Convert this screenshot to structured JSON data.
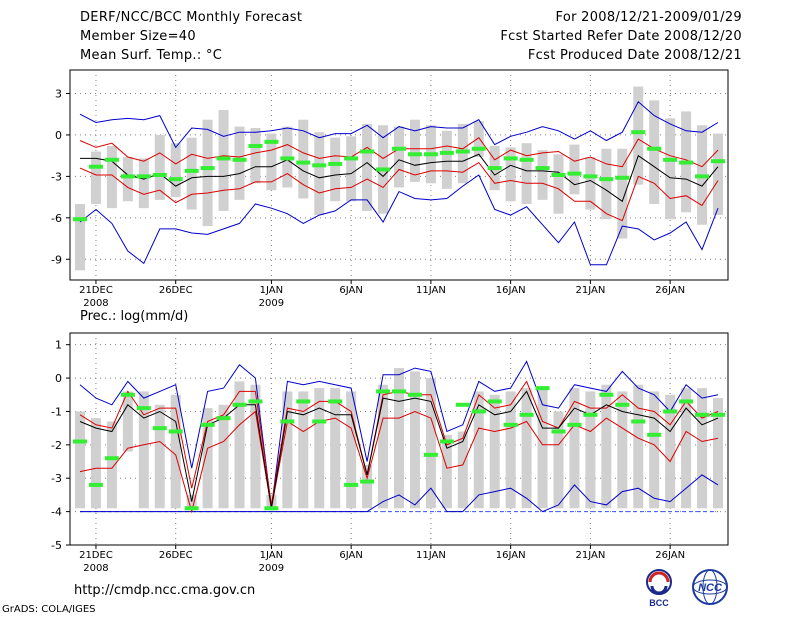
{
  "header": {
    "title": "DERF/NCC/BCC Monthly Forecast",
    "member_size": "Member Size=40",
    "variable": "Mean Surf. Temp.: °C",
    "period": "For 2008/12/21-2009/01/29",
    "fcst_started": "Fcst Started Refer Date 2008/12/20",
    "fcst_produced": "Fcst Produced Date 2008/12/21"
  },
  "precip_label": "Prec.: log(mm/d)",
  "footer": {
    "url": "http://cmdp.ncc.cma.gov.cn",
    "grads": "GrADS: COLA/IGES",
    "logo_left": "BCC",
    "logo_right": "NCC"
  },
  "colors": {
    "grid": "#808080",
    "box": "#d0d0d0",
    "median": "#33ee33",
    "mean": "#000000",
    "spread": "#dd0000",
    "extreme": "#0000cc",
    "floor": "#3355ff"
  },
  "chart_data": [
    {
      "type": "line",
      "title": "Mean Surf. Temp.: °C",
      "ylim": [
        -10.5,
        4.7
      ],
      "yticks": [
        3,
        0,
        -3,
        -6,
        -9
      ],
      "xlim": [
        0,
        40
      ],
      "x_ticks": [
        {
          "x": 1,
          "label": "21DEC",
          "sub": "2008"
        },
        {
          "x": 6,
          "label": "26DEC",
          "sub": ""
        },
        {
          "x": 12,
          "label": "1JAN",
          "sub": "2009"
        },
        {
          "x": 17,
          "label": "6JAN",
          "sub": ""
        },
        {
          "x": 22,
          "label": "11JAN",
          "sub": ""
        },
        {
          "x": 27,
          "label": "16JAN",
          "sub": ""
        },
        {
          "x": 32,
          "label": "21JAN",
          "sub": ""
        },
        {
          "x": 37,
          "label": "26JAN",
          "sub": ""
        }
      ],
      "series": [
        {
          "name": "max",
          "values": [
            1.5,
            0.9,
            1.1,
            1.2,
            1.1,
            1.4,
            -0.9,
            0.5,
            0.4,
            -0.1,
            0.2,
            0.2,
            0.3,
            0.5,
            0.3,
            -0.2,
            0.1,
            0.1,
            0.7,
            -0.2,
            0.6,
            0.3,
            0.6,
            0.5,
            0.5,
            1.1,
            -0.7,
            -0.1,
            0.2,
            0.6,
            0.3,
            -0.3,
            0.3,
            -0.4,
            0.2,
            2.4,
            1.4,
            0.8,
            0.3,
            0.2,
            0.9
          ]
        },
        {
          "name": "upper",
          "values": [
            -0.4,
            -0.9,
            -0.6,
            -1.6,
            -1.9,
            -1.3,
            -2.1,
            -1.4,
            -1.7,
            -1.5,
            -1.6,
            -1.3,
            -1.1,
            -0.7,
            -1.3,
            -1.7,
            -1.5,
            -1.6,
            -0.9,
            -1.7,
            -1.0,
            -1.0,
            -1.0,
            -0.8,
            -1.0,
            -0.2,
            -1.8,
            -1.1,
            -1.5,
            -1.3,
            -1.2,
            -1.9,
            -1.6,
            -2.1,
            -2.3,
            -0.3,
            -1.0,
            -1.5,
            -1.8,
            -2.3,
            -1.1
          ]
        },
        {
          "name": "mean",
          "values": [
            -1.7,
            -1.7,
            -1.9,
            -2.9,
            -3.2,
            -2.8,
            -3.7,
            -3.1,
            -3.0,
            -3.0,
            -2.8,
            -2.3,
            -2.3,
            -1.8,
            -2.6,
            -3.1,
            -2.9,
            -2.8,
            -2.0,
            -3.0,
            -1.8,
            -2.2,
            -2.0,
            -1.9,
            -1.9,
            -1.4,
            -2.9,
            -2.2,
            -2.6,
            -2.6,
            -2.7,
            -3.6,
            -3.3,
            -4.0,
            -4.8,
            -1.5,
            -2.3,
            -3.1,
            -3.2,
            -3.7,
            -2.3
          ]
        },
        {
          "name": "lower",
          "values": [
            -2.4,
            -2.9,
            -2.9,
            -3.8,
            -4.3,
            -4.0,
            -4.9,
            -4.3,
            -4.2,
            -4.0,
            -3.9,
            -3.4,
            -3.4,
            -2.8,
            -3.6,
            -4.2,
            -3.9,
            -3.8,
            -3.2,
            -3.8,
            -2.5,
            -2.9,
            -2.6,
            -2.6,
            -2.7,
            -2.0,
            -3.5,
            -3.3,
            -3.5,
            -3.5,
            -3.9,
            -4.8,
            -4.8,
            -5.7,
            -6.2,
            -3.0,
            -3.5,
            -4.6,
            -4.4,
            -5.1,
            -3.3
          ]
        },
        {
          "name": "min",
          "values": [
            -6.3,
            -5.4,
            -6.4,
            -8.4,
            -9.3,
            -6.8,
            -6.8,
            -7.1,
            -7.2,
            -6.8,
            -6.4,
            -5.0,
            -5.3,
            -5.7,
            -6.4,
            -5.8,
            -5.5,
            -4.7,
            -4.7,
            -6.3,
            -4.1,
            -4.6,
            -4.7,
            -4.6,
            -3.7,
            -2.9,
            -5.4,
            -5.8,
            -5.2,
            -6.5,
            -7.8,
            -6.3,
            -9.4,
            -9.4,
            -6.6,
            -6.8,
            -7.6,
            -7.1,
            -6.3,
            -8.3,
            -5.3
          ]
        },
        {
          "name": "median",
          "values": [
            -6.1,
            -2.3,
            -1.8,
            -3.0,
            -3.0,
            -2.9,
            -3.2,
            -2.6,
            -2.4,
            -1.7,
            -1.8,
            -0.8,
            -0.5,
            -1.7,
            -2.0,
            -2.2,
            -2.1,
            -1.7,
            -1.2,
            -2.5,
            -1.0,
            -1.4,
            -1.4,
            -1.3,
            -1.2,
            -1.0,
            -2.4,
            -1.7,
            -1.8,
            -2.4,
            -2.9,
            -2.8,
            -3.0,
            -3.2,
            -3.1,
            0.2,
            -1.0,
            -1.8,
            -2.0,
            -3.0,
            -1.9
          ]
        },
        {
          "name": "box_top",
          "values": [
            -5.0,
            -1.2,
            -0.8,
            -1.6,
            -1.7,
            0.0,
            -0.6,
            -0.2,
            1.1,
            1.8,
            0.6,
            0.5,
            0.1,
            0.6,
            1.1,
            0.2,
            -0.2,
            -0.1,
            0.8,
            0.7,
            0.6,
            1.1,
            0.7,
            0.3,
            0.8,
            1.0,
            -0.8,
            -0.9,
            -0.6,
            -1.1,
            -1.4,
            -0.7,
            -1.6,
            -1.0,
            -1.0,
            3.5,
            2.5,
            1.2,
            1.7,
            0.7,
            0.1
          ]
        },
        {
          "name": "box_bottom",
          "values": [
            -9.8,
            -5.0,
            -5.3,
            -4.8,
            -5.3,
            -4.7,
            -4.5,
            -5.4,
            -6.6,
            -5.5,
            -4.7,
            -3.5,
            -4.0,
            -3.8,
            -4.6,
            -5.8,
            -4.8,
            -4.8,
            -5.5,
            -5.7,
            -3.8,
            -3.4,
            -3.5,
            -3.9,
            -3.5,
            -1.6,
            -4.0,
            -4.8,
            -5.0,
            -4.7,
            -5.7,
            -4.3,
            -5.4,
            -6.1,
            -7.5,
            -3.6,
            -5.0,
            -6.1,
            -5.6,
            -6.5,
            -5.8
          ]
        }
      ]
    },
    {
      "type": "line",
      "title": "Prec.: log(mm/d)",
      "ylim": [
        -5,
        1.35
      ],
      "yticks": [
        1,
        0,
        -1,
        -2,
        -3,
        -4,
        -5
      ],
      "xlim": [
        0,
        40
      ],
      "x_ticks": [
        {
          "x": 1,
          "label": "21DEC",
          "sub": "2008"
        },
        {
          "x": 6,
          "label": "26DEC",
          "sub": ""
        },
        {
          "x": 12,
          "label": "1JAN",
          "sub": "2009"
        },
        {
          "x": 17,
          "label": "6JAN",
          "sub": ""
        },
        {
          "x": 22,
          "label": "11JAN",
          "sub": ""
        },
        {
          "x": 27,
          "label": "16JAN",
          "sub": ""
        },
        {
          "x": 32,
          "label": "21JAN",
          "sub": ""
        },
        {
          "x": 37,
          "label": "26JAN",
          "sub": ""
        }
      ],
      "series": [
        {
          "name": "max",
          "values": [
            -0.2,
            -0.6,
            -0.8,
            -0.1,
            -0.6,
            -0.4,
            -0.2,
            -2.7,
            -0.4,
            -0.3,
            0.4,
            0.0,
            -3.9,
            -0.1,
            -0.2,
            -0.1,
            -0.2,
            -0.3,
            -2.5,
            0.1,
            0.1,
            0.3,
            0.2,
            -1.6,
            -1.4,
            -0.1,
            -0.4,
            -0.3,
            0.5,
            -0.8,
            -0.9,
            -0.2,
            -0.3,
            -0.4,
            0.2,
            -0.3,
            -0.5,
            -1.0,
            -0.2,
            -0.6,
            -0.5
          ]
        },
        {
          "name": "upper",
          "values": [
            -1.1,
            -1.4,
            -1.5,
            -0.4,
            -1.1,
            -0.9,
            -0.9,
            -3.3,
            -1.3,
            -1.1,
            -0.4,
            -0.4,
            -3.8,
            -0.9,
            -1.0,
            -0.7,
            -0.7,
            -1.0,
            -2.9,
            -0.5,
            -0.4,
            -0.5,
            -0.5,
            -2.0,
            -1.8,
            -0.5,
            -0.9,
            -0.8,
            -0.1,
            -1.3,
            -1.5,
            -0.7,
            -0.9,
            -0.9,
            -0.5,
            -0.9,
            -1.0,
            -1.4,
            -0.7,
            -1.2,
            -1.0
          ]
        },
        {
          "name": "mean",
          "values": [
            -1.3,
            -1.5,
            -1.6,
            -0.8,
            -1.2,
            -1.0,
            -1.3,
            -3.7,
            -1.4,
            -1.2,
            -0.8,
            -0.8,
            -3.9,
            -1.0,
            -1.1,
            -0.9,
            -1.1,
            -1.1,
            -2.9,
            -0.6,
            -0.7,
            -0.6,
            -0.7,
            -2.1,
            -1.9,
            -0.8,
            -1.1,
            -1.0,
            -0.4,
            -1.5,
            -1.5,
            -0.9,
            -1.1,
            -0.8,
            -1.0,
            -1.1,
            -1.2,
            -1.6,
            -0.9,
            -1.4,
            -1.2
          ]
        },
        {
          "name": "lower",
          "values": [
            -2.8,
            -2.7,
            -2.7,
            -2.1,
            -2.0,
            -1.9,
            -2.3,
            -4.0,
            -2.1,
            -1.9,
            -1.4,
            -1.0,
            -3.9,
            -1.3,
            -1.6,
            -1.3,
            -1.2,
            -1.5,
            -3.0,
            -1.2,
            -1.2,
            -1.0,
            -1.2,
            -2.7,
            -2.6,
            -1.5,
            -1.6,
            -1.5,
            -1.3,
            -2.0,
            -2.0,
            -1.4,
            -1.6,
            -1.2,
            -1.5,
            -1.8,
            -2.0,
            -2.5,
            -1.6,
            -1.9,
            -1.8
          ]
        },
        {
          "name": "min",
          "values": [
            -4.0,
            -4.0,
            -4.0,
            -4.0,
            -4.0,
            -4.0,
            -4.0,
            -4.0,
            -4.0,
            -4.0,
            -4.0,
            -4.0,
            -4.0,
            -4.0,
            -4.0,
            -4.0,
            -4.0,
            -4.0,
            -4.0,
            -3.7,
            -3.5,
            -3.8,
            -3.3,
            -4.0,
            -4.0,
            -3.5,
            -3.4,
            -3.3,
            -3.6,
            -4.0,
            -3.8,
            -3.2,
            -3.7,
            -3.8,
            -3.4,
            -3.3,
            -3.6,
            -3.7,
            -3.3,
            -2.9,
            -3.2
          ]
        },
        {
          "name": "median",
          "values": [
            -1.9,
            -3.2,
            -2.4,
            -0.5,
            -0.9,
            -1.5,
            -1.6,
            -3.9,
            -1.4,
            -1.2,
            -0.8,
            -0.7,
            -3.9,
            -1.3,
            -0.7,
            -1.3,
            -0.7,
            -3.2,
            -3.1,
            -0.4,
            -0.4,
            -0.5,
            -2.3,
            -1.9,
            -0.8,
            -1.0,
            -0.7,
            -1.4,
            -1.1,
            -0.3,
            -1.6,
            -1.4,
            -1.1,
            -0.5,
            -0.8,
            -1.3,
            -1.7,
            -1.0,
            -0.7,
            -1.1,
            -1.1
          ]
        },
        {
          "name": "box_top",
          "values": [
            -1.0,
            -1.2,
            -1.3,
            -0.4,
            -0.4,
            -0.8,
            -0.5,
            -3.5,
            -0.9,
            -0.8,
            -0.1,
            -0.2,
            -3.5,
            -0.4,
            -0.4,
            -0.3,
            -0.3,
            -0.4,
            -2.6,
            -0.2,
            0.3,
            0.2,
            0.0,
            -1.7,
            -1.6,
            -0.4,
            -0.5,
            -0.4,
            -0.3,
            -0.3,
            -1.0,
            -0.3,
            -0.4,
            -0.2,
            -0.4,
            -0.2,
            -0.4,
            -0.5,
            -0.3,
            -0.3,
            -0.6
          ]
        },
        {
          "name": "box_bottom",
          "values": [
            -3.9,
            -3.9,
            -3.9,
            -2.2,
            -3.9,
            -3.9,
            -3.9,
            -3.9,
            -3.9,
            -3.9,
            -3.9,
            -3.9,
            -3.9,
            -3.9,
            -3.9,
            -3.9,
            -3.9,
            -3.9,
            -3.9,
            -3.9,
            -3.9,
            -3.9,
            -3.9,
            -3.9,
            -3.9,
            -3.9,
            -3.9,
            -3.9,
            -3.9,
            -3.9,
            -3.9,
            -3.9,
            -3.9,
            -3.9,
            -3.9,
            -3.9,
            -3.9,
            -3.9,
            -3.9,
            -3.9,
            -3.9
          ]
        },
        {
          "name": "floor",
          "values": [
            -4.0,
            -4.0,
            -4.0,
            -4.0,
            -4.0,
            -4.0,
            -4.0,
            -4.0,
            -4.0,
            -4.0,
            -4.0,
            -4.0,
            -4.0,
            -4.0,
            -4.0,
            -4.0,
            -4.0,
            -4.0,
            -4.0,
            -4.0,
            -4.0,
            -4.0,
            -4.0,
            -4.0,
            -4.0,
            -4.0,
            -4.0,
            -4.0,
            -4.0,
            -4.0,
            -4.0,
            -4.0,
            -4.0,
            -4.0,
            -4.0,
            -4.0,
            -4.0,
            -4.0,
            -4.0,
            -4.0,
            -4.0
          ]
        }
      ]
    }
  ]
}
